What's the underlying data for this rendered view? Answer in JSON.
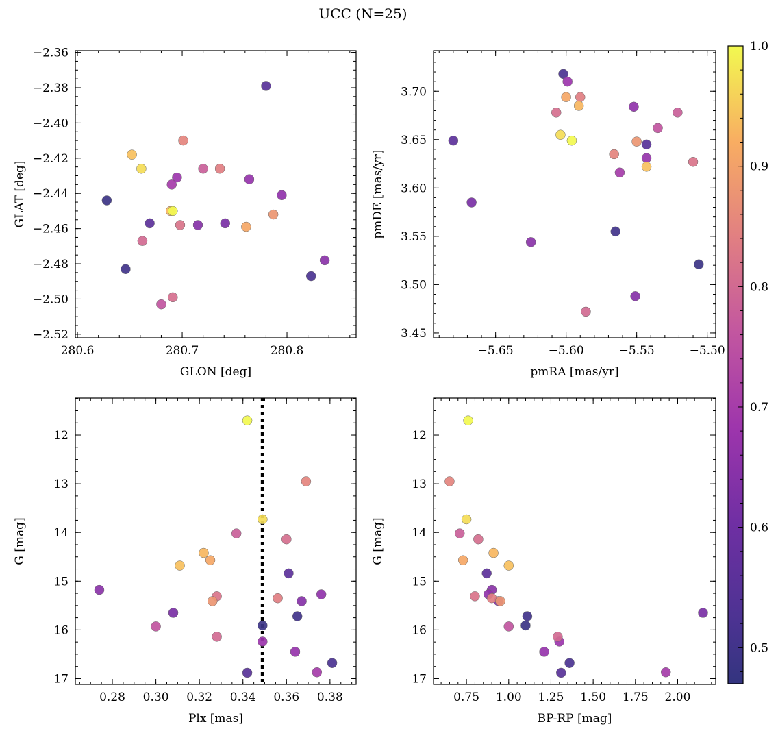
{
  "chart_data": {
    "title": "UCC (N=25)",
    "colorbar": {
      "colormap": "plasma",
      "range": [
        0.47,
        1.0
      ],
      "ticks": [
        "0.5",
        "0.6",
        "0.7",
        "0.8",
        "0.9",
        "1.0"
      ],
      "tick_values": [
        0.5,
        0.6,
        0.7,
        0.8,
        0.9,
        1.0
      ]
    },
    "panels": [
      {
        "type": "scatter",
        "xlabel": "GLON [deg]",
        "ylabel": "GLAT [deg]",
        "xlim": [
          280.598,
          280.866
        ],
        "ylim": [
          -2.522,
          -2.359
        ],
        "invert_y": false,
        "xticks": [
          "280.6",
          "280.7",
          "280.8"
        ],
        "xtick_values": [
          280.6,
          280.7,
          280.8
        ],
        "xminor": 0.02,
        "yticks": [
          "−2.52",
          "−2.50",
          "−2.48",
          "−2.46",
          "−2.44",
          "−2.42",
          "−2.40",
          "−2.38",
          "−2.36"
        ],
        "ytick_values": [
          -2.52,
          -2.5,
          -2.48,
          -2.46,
          -2.44,
          -2.42,
          -2.4,
          -2.38,
          -2.36
        ],
        "yminor": 0.005,
        "vline": null
      },
      {
        "type": "scatter",
        "xlabel": "pmRA [mas/yr]",
        "ylabel": "pmDE [mas/yr]",
        "xlim": [
          -5.694,
          -5.494
        ],
        "ylim": [
          3.445,
          3.742
        ],
        "invert_y": false,
        "xticks": [
          "−5.65",
          "−5.60",
          "−5.55",
          "−5.50"
        ],
        "xtick_values": [
          -5.65,
          -5.6,
          -5.55,
          -5.5
        ],
        "xminor": 0.01,
        "yticks": [
          "3.45",
          "3.50",
          "3.55",
          "3.60",
          "3.65",
          "3.70"
        ],
        "ytick_values": [
          3.45,
          3.5,
          3.55,
          3.6,
          3.65,
          3.7
        ],
        "yminor": 0.01,
        "vline": null
      },
      {
        "type": "scatter",
        "xlabel": "Plx [mas]",
        "ylabel": "G [mag]",
        "xlim": [
          0.263,
          0.392
        ],
        "ylim": [
          17.12,
          11.24
        ],
        "invert_y": true,
        "xticks": [
          "0.28",
          "0.30",
          "0.32",
          "0.34",
          "0.36",
          "0.38"
        ],
        "xtick_values": [
          0.28,
          0.3,
          0.32,
          0.34,
          0.36,
          0.38
        ],
        "xminor": 0.005,
        "yticks": [
          "12",
          "13",
          "14",
          "15",
          "16",
          "17"
        ],
        "ytick_values": [
          12,
          13,
          14,
          15,
          16,
          17
        ],
        "yminor": 0.25,
        "vline": 0.349
      },
      {
        "type": "scatter",
        "xlabel": "BP-RP [mag]",
        "ylabel": "G [mag]",
        "xlim": [
          0.555,
          2.225
        ],
        "ylim": [
          17.12,
          11.24
        ],
        "invert_y": true,
        "xticks": [
          "0.75",
          "1.00",
          "1.25",
          "1.50",
          "1.75",
          "2.00"
        ],
        "xtick_values": [
          0.75,
          1.0,
          1.25,
          1.5,
          1.75,
          2.0
        ],
        "xminor": 0.05,
        "yticks": [
          "12",
          "13",
          "14",
          "15",
          "16",
          "17"
        ],
        "ytick_values": [
          12,
          13,
          14,
          15,
          16,
          17
        ],
        "yminor": 0.25,
        "vline": null
      }
    ],
    "stars": [
      {
        "glon": 280.691,
        "glat": -2.45,
        "pmra": -5.596,
        "pmde": 3.649,
        "plx": 0.342,
        "g": 11.7,
        "bprp": 0.76,
        "prob": 1.0
      },
      {
        "glon": 280.661,
        "glat": -2.426,
        "pmra": -5.604,
        "pmde": 3.655,
        "plx": 0.349,
        "g": 13.73,
        "bprp": 0.75,
        "prob": 0.97
      },
      {
        "glon": 280.652,
        "glat": -2.418,
        "pmra": -5.543,
        "pmde": 3.622,
        "plx": 0.311,
        "g": 14.68,
        "bprp": 1.0,
        "prob": 0.94
      },
      {
        "glon": 280.689,
        "glat": -2.45,
        "pmra": -5.591,
        "pmde": 3.685,
        "plx": 0.322,
        "g": 14.42,
        "bprp": 0.91,
        "prob": 0.93
      },
      {
        "glon": 280.761,
        "glat": -2.459,
        "pmra": -5.6,
        "pmde": 3.694,
        "plx": 0.325,
        "g": 14.57,
        "bprp": 0.73,
        "prob": 0.91
      },
      {
        "glon": 280.787,
        "glat": -2.452,
        "pmra": -5.55,
        "pmde": 3.648,
        "plx": 0.326,
        "g": 15.41,
        "bprp": 0.95,
        "prob": 0.88
      },
      {
        "glon": 280.701,
        "glat": -2.41,
        "pmra": -5.566,
        "pmde": 3.635,
        "plx": 0.369,
        "g": 12.95,
        "bprp": 0.65,
        "prob": 0.85
      },
      {
        "glon": 280.736,
        "glat": -2.426,
        "pmra": -5.59,
        "pmde": 3.694,
        "plx": 0.356,
        "g": 15.35,
        "bprp": 0.9,
        "prob": 0.84
      },
      {
        "glon": 280.698,
        "glat": -2.458,
        "pmra": -5.51,
        "pmde": 3.627,
        "plx": 0.328,
        "g": 15.31,
        "bprp": 0.8,
        "prob": 0.82
      },
      {
        "glon": 280.691,
        "glat": -2.499,
        "pmra": -5.607,
        "pmde": 3.678,
        "plx": 0.36,
        "g": 14.14,
        "bprp": 0.82,
        "prob": 0.81
      },
      {
        "glon": 280.662,
        "glat": -2.467,
        "pmra": -5.586,
        "pmde": 3.472,
        "plx": 0.328,
        "g": 16.14,
        "bprp": 1.29,
        "prob": 0.8
      },
      {
        "glon": 280.72,
        "glat": -2.426,
        "pmra": -5.521,
        "pmde": 3.678,
        "plx": 0.337,
        "g": 14.02,
        "bprp": 0.71,
        "prob": 0.78
      },
      {
        "glon": 280.68,
        "glat": -2.503,
        "pmra": -5.535,
        "pmde": 3.662,
        "plx": 0.3,
        "g": 15.93,
        "bprp": 1.0,
        "prob": 0.76
      },
      {
        "glon": 280.69,
        "glat": -2.435,
        "pmra": -5.562,
        "pmde": 3.616,
        "plx": 0.374,
        "g": 16.87,
        "bprp": 1.93,
        "prob": 0.7
      },
      {
        "glon": 280.695,
        "glat": -2.431,
        "pmra": -5.599,
        "pmde": 3.71,
        "plx": 0.349,
        "g": 16.24,
        "bprp": 1.3,
        "prob": 0.68
      },
      {
        "glon": 280.764,
        "glat": -2.432,
        "pmra": -5.543,
        "pmde": 3.631,
        "plx": 0.364,
        "g": 16.45,
        "bprp": 1.21,
        "prob": 0.67
      },
      {
        "glon": 280.795,
        "glat": -2.441,
        "pmra": -5.552,
        "pmde": 3.684,
        "plx": 0.376,
        "g": 15.27,
        "bprp": 0.88,
        "prob": 0.66
      },
      {
        "glon": 280.836,
        "glat": -2.478,
        "pmra": -5.625,
        "pmde": 3.544,
        "plx": 0.274,
        "g": 15.18,
        "bprp": 0.9,
        "prob": 0.65
      },
      {
        "glon": 280.715,
        "glat": -2.458,
        "pmra": -5.551,
        "pmde": 3.488,
        "plx": 0.367,
        "g": 15.41,
        "bprp": 0.94,
        "prob": 0.64
      },
      {
        "glon": 280.741,
        "glat": -2.457,
        "pmra": -5.667,
        "pmde": 3.585,
        "plx": 0.308,
        "g": 15.65,
        "bprp": 2.15,
        "prob": 0.62
      },
      {
        "glon": 280.669,
        "glat": -2.457,
        "pmra": -5.68,
        "pmde": 3.649,
        "plx": 0.361,
        "g": 14.84,
        "bprp": 0.87,
        "prob": 0.56
      },
      {
        "glon": 280.78,
        "glat": -2.379,
        "pmra": -5.543,
        "pmde": 3.645,
        "plx": 0.342,
        "g": 16.88,
        "bprp": 1.31,
        "prob": 0.55
      },
      {
        "glon": 280.823,
        "glat": -2.487,
        "pmra": -5.602,
        "pmde": 3.718,
        "plx": 0.381,
        "g": 16.68,
        "bprp": 1.36,
        "prob": 0.52
      },
      {
        "glon": 280.646,
        "glat": -2.483,
        "pmra": -5.565,
        "pmde": 3.555,
        "plx": 0.365,
        "g": 15.72,
        "bprp": 1.11,
        "prob": 0.5
      },
      {
        "glon": 280.628,
        "glat": -2.444,
        "pmra": -5.506,
        "pmde": 3.521,
        "plx": 0.349,
        "g": 15.91,
        "bprp": 1.1,
        "prob": 0.49
      }
    ]
  }
}
